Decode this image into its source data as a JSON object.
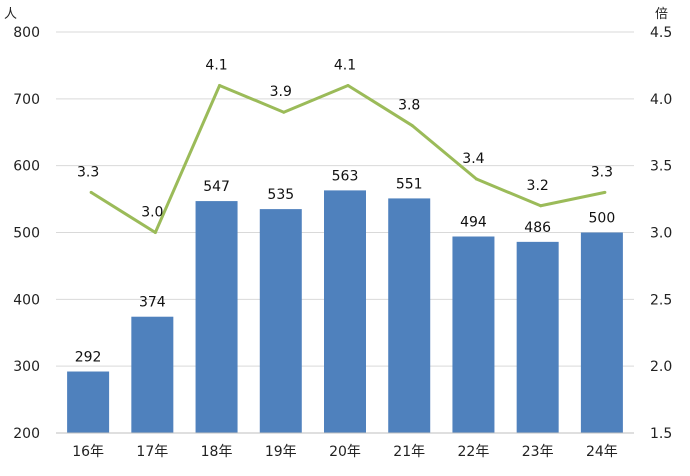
{
  "chart_data": {
    "type": "bar+line",
    "categories": [
      "16年",
      "17年",
      "18年",
      "19年",
      "20年",
      "21年",
      "22年",
      "23年",
      "24年"
    ],
    "series": [
      {
        "type": "bar",
        "axis": "left",
        "color": "#4f81bd",
        "values": [
          292,
          374,
          547,
          535,
          563,
          551,
          494,
          486,
          500
        ],
        "labels": [
          "292",
          "374",
          "547",
          "535",
          "563",
          "551",
          "494",
          "486",
          "500"
        ]
      },
      {
        "type": "line",
        "axis": "right",
        "color": "#9bbb59",
        "values": [
          3.3,
          3.0,
          4.1,
          3.9,
          4.1,
          3.8,
          3.4,
          3.2,
          3.3
        ],
        "labels": [
          "3.3",
          "3.0",
          "4.1",
          "3.9",
          "4.1",
          "3.8",
          "3.4",
          "3.2",
          "3.3"
        ]
      }
    ],
    "y_left": {
      "unit": "人",
      "min": 200,
      "max": 800,
      "ticks": [
        "200",
        "300",
        "400",
        "500",
        "600",
        "700",
        "800"
      ]
    },
    "y_right": {
      "unit": "倍",
      "min": 1.5,
      "max": 4.5,
      "ticks": [
        "1.5",
        "2.0",
        "2.5",
        "3.0",
        "3.5",
        "4.0",
        "4.5"
      ]
    },
    "grid": true
  }
}
